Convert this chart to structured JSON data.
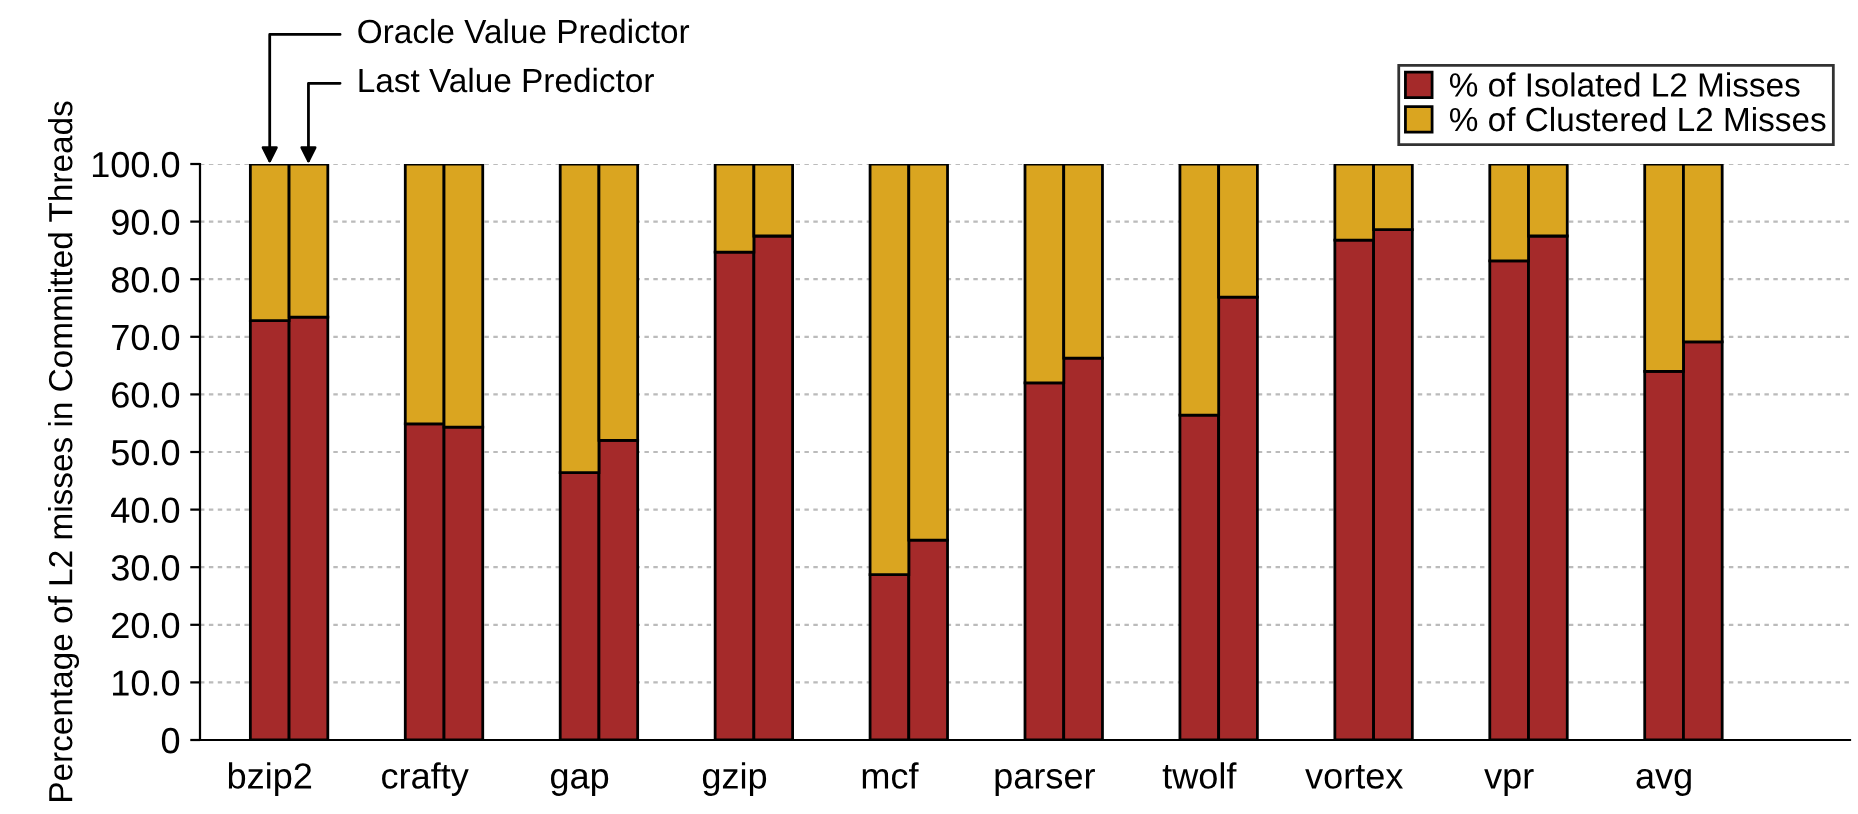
{
  "chart_data": {
    "type": "bar",
    "stacked": true,
    "ylabel": "Percentage of L2 misses in Committed Threads",
    "categories": [
      "bzip2",
      null,
      null,
      null,
      "crafty",
      null,
      null,
      null,
      "gap",
      null,
      null,
      null,
      "gzip",
      null,
      null,
      null,
      "mcf",
      null,
      null,
      null,
      "parser",
      null,
      null,
      null,
      "twolf",
      null,
      null,
      null,
      "vortex",
      null,
      null,
      null,
      "vpr",
      null,
      null,
      null,
      "avg",
      null,
      null,
      null
    ],
    "series": [
      {
        "name": "% of Isolated L2 Misses",
        "color": "#a52a2a",
        "values": [
          72.8,
          73.4,
          null,
          null,
          54.9,
          54.3,
          null,
          null,
          46.4,
          52.0,
          null,
          null,
          84.7,
          87.5,
          null,
          null,
          28.7,
          34.7,
          null,
          null,
          62.0,
          66.3,
          null,
          null,
          56.4,
          76.9,
          null,
          null,
          86.8,
          88.6,
          null,
          null,
          83.2,
          87.5,
          null,
          null,
          64.0,
          69.1,
          null,
          null
        ]
      },
      {
        "name": "% of Clustered L2 Misses",
        "color": "#daa520",
        "values": [
          27.2,
          26.6,
          null,
          null,
          45.1,
          45.7,
          null,
          null,
          53.6,
          48.0,
          null,
          null,
          15.3,
          12.5,
          null,
          null,
          71.3,
          65.3,
          null,
          null,
          38.0,
          33.7,
          null,
          null,
          43.6,
          23.1,
          null,
          null,
          13.2,
          11.4,
          null,
          null,
          16.8,
          12.5,
          null,
          null,
          36.0,
          30.9,
          null,
          null
        ]
      }
    ],
    "ylim": [
      0,
      100
    ],
    "yticks": [
      0,
      {
        "value": 10,
        "label": "10.0"
      },
      {
        "value": 20,
        "label": "20.0"
      },
      {
        "value": 30,
        "label": "30.0"
      },
      {
        "value": 40,
        "label": "40.0"
      },
      {
        "value": 50,
        "label": "50.0"
      },
      {
        "value": 60,
        "label": "60.0"
      },
      {
        "value": 70,
        "label": "70.0"
      },
      {
        "value": 80,
        "label": "80.0"
      },
      {
        "value": 90,
        "label": "90.0"
      },
      {
        "value": 100,
        "label": "100.0"
      }
    ],
    "grid": "y",
    "legend": "top right",
    "annotations": [
      "Oracle Value Predictor",
      "Last Value Predictor"
    ]
  }
}
